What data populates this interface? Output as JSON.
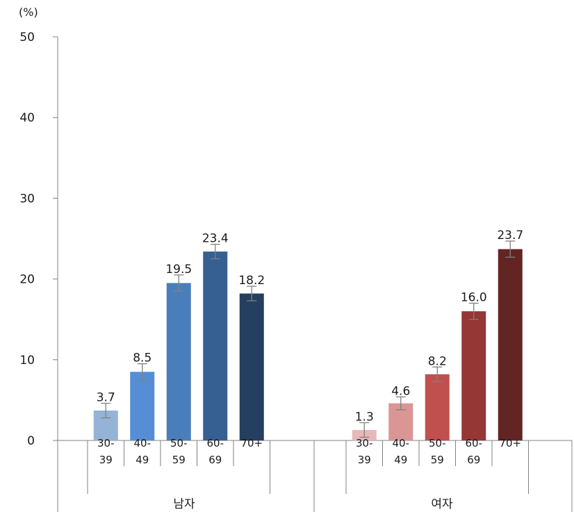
{
  "chart_data": {
    "type": "bar",
    "unit_label": "(%)",
    "ylim": [
      0,
      50
    ],
    "yticks": [
      0,
      10,
      20,
      30,
      40,
      50
    ],
    "grid": false,
    "error_bars": true,
    "groups": [
      {
        "name": "남자",
        "categories": [
          [
            "30-",
            "39"
          ],
          [
            "40-",
            "49"
          ],
          [
            "50-",
            "59"
          ],
          [
            "60-",
            "69"
          ],
          [
            "70+",
            ""
          ]
        ],
        "values": [
          3.7,
          8.5,
          19.5,
          23.4,
          18.2
        ],
        "value_labels": [
          "3.7",
          "8.5",
          "19.5",
          "23.4",
          "18.2"
        ],
        "errors": [
          0.9,
          1.0,
          1.0,
          0.9,
          0.9
        ],
        "colors": [
          "#95b3d7",
          "#558ed5",
          "#4a7ebb",
          "#376092",
          "#243f60"
        ]
      },
      {
        "name": "여자",
        "categories": [
          [
            "30-",
            "39"
          ],
          [
            "40-",
            "49"
          ],
          [
            "50-",
            "59"
          ],
          [
            "60-",
            "69"
          ],
          [
            "70+",
            ""
          ]
        ],
        "values": [
          1.3,
          4.6,
          8.2,
          16.0,
          23.7
        ],
        "value_labels": [
          "1.3",
          "4.6",
          "8.2",
          "16.0",
          "23.7"
        ],
        "errors": [
          0.9,
          0.8,
          0.9,
          1.0,
          1.0
        ],
        "colors": [
          "#e6b9b8",
          "#d99694",
          "#c0504d",
          "#953735",
          "#632523"
        ]
      }
    ]
  }
}
